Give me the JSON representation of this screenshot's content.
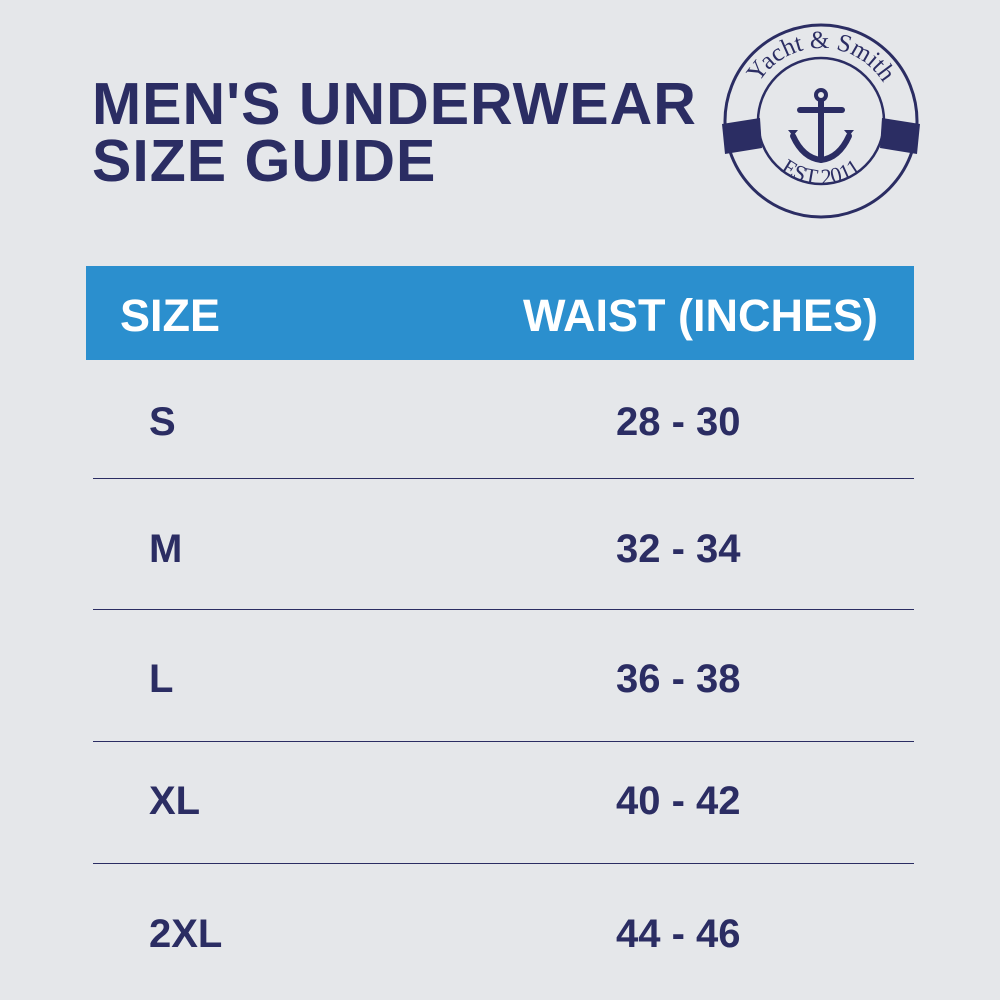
{
  "title": {
    "line1": "MEN'S UNDERWEAR",
    "line2": "SIZE GUIDE"
  },
  "logo": {
    "top_text": "Yacht & Smith",
    "bottom_text": "EST 2011",
    "icon": "anchor-icon"
  },
  "colors": {
    "navy": "#2b2d63",
    "header_blue": "#2b8fce",
    "background": "#e5e7ea"
  },
  "table": {
    "headers": [
      "SIZE",
      "WAIST (INCHES)"
    ],
    "rows": [
      {
        "size": "S",
        "waist": "28 - 30"
      },
      {
        "size": "M",
        "waist": "32 - 34"
      },
      {
        "size": "L",
        "waist": "36 - 38"
      },
      {
        "size": "XL",
        "waist": "40 - 42"
      },
      {
        "size": "2XL",
        "waist": "44 - 46"
      }
    ]
  }
}
